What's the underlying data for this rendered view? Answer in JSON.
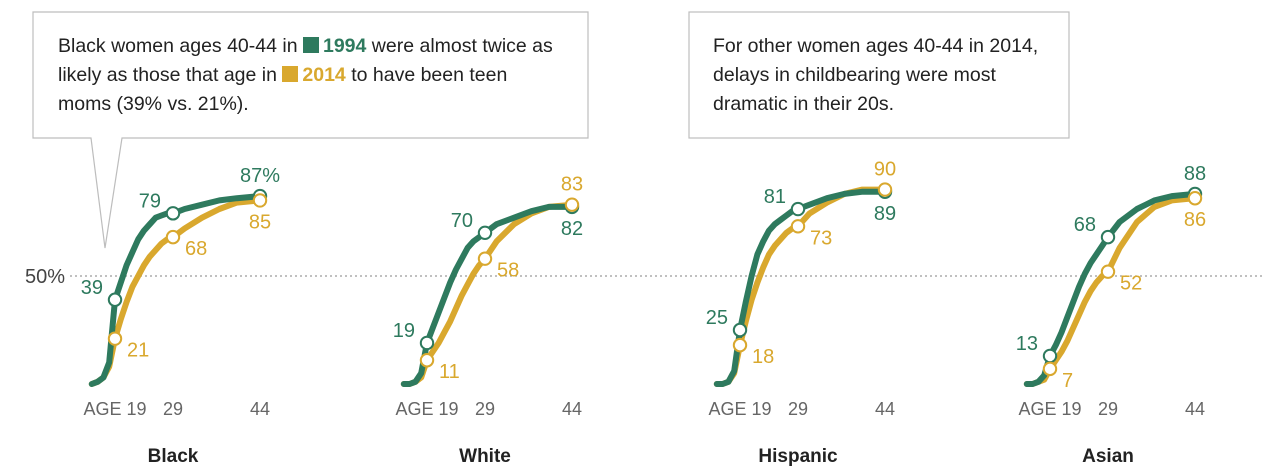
{
  "callouts": {
    "left": {
      "text_before": "Black women ages 40-44 in",
      "year_a": "1994",
      "text_middle": "were almost twice as likely as those that age in",
      "year_b": "2014",
      "text_after": "to have been teen moms (39% vs. 21%)."
    },
    "right": {
      "text": "For other women ages 40-44 in 2014, delays in childbearing were most dramatic in their 20s."
    }
  },
  "colors": {
    "y1994": "#2e7a5e",
    "y2014": "#d9a82e",
    "ref": "#9a9a9a",
    "text": "#444444"
  },
  "chart_data": {
    "type": "line",
    "x_tick_labels": [
      "AGE 19",
      "29",
      "44"
    ],
    "x_ticks": [
      19,
      29,
      44
    ],
    "y_ref_label": "50%",
    "y_ref": 50,
    "ylim": [
      0,
      100
    ],
    "legend_series": [
      "1994",
      "2014"
    ],
    "panels": [
      {
        "title": "Black",
        "series": [
          {
            "name": "1994",
            "x": [
              15,
              16,
              17,
              18,
              19,
              20,
              21,
              22,
              23,
              24,
              25,
              26,
              27,
              28,
              29,
              31,
              34,
              37,
              40,
              44
            ],
            "y": [
              0,
              1,
              3,
              10,
              39,
              47,
              55,
              61,
              67,
              71,
              74,
              77,
              78,
              79,
              79,
              81,
              83,
              85,
              86,
              87
            ],
            "labels": [
              {
                "x": 19,
                "y": 39,
                "text": "39"
              },
              {
                "x": 29,
                "y": 79,
                "text": "79"
              },
              {
                "x": 44,
                "y": 87,
                "text": "87%"
              }
            ]
          },
          {
            "name": "2014",
            "x": [
              15,
              16,
              17,
              18,
              19,
              20,
              21,
              22,
              23,
              24,
              25,
              26,
              27,
              28,
              29,
              31,
              34,
              37,
              40,
              44
            ],
            "y": [
              0,
              1,
              3,
              8,
              21,
              30,
              38,
              45,
              50,
              55,
              59,
              62,
              65,
              67,
              68,
              72,
              77,
              81,
              84,
              85
            ],
            "labels": [
              {
                "x": 19,
                "y": 21,
                "text": "21"
              },
              {
                "x": 29,
                "y": 68,
                "text": "68"
              },
              {
                "x": 44,
                "y": 85,
                "text": "85"
              }
            ]
          }
        ]
      },
      {
        "title": "White",
        "series": [
          {
            "name": "1994",
            "x": [
              15,
              16,
              17,
              18,
              19,
              20,
              21,
              22,
              23,
              24,
              25,
              26,
              27,
              28,
              29,
              31,
              34,
              37,
              40,
              44
            ],
            "y": [
              0,
              0,
              1,
              5,
              19,
              26,
              33,
              40,
              47,
              53,
              58,
              63,
              66,
              68,
              70,
              74,
              77,
              80,
              82,
              82
            ],
            "labels": [
              {
                "x": 19,
                "y": 19,
                "text": "19"
              },
              {
                "x": 29,
                "y": 70,
                "text": "70"
              },
              {
                "x": 44,
                "y": 82,
                "text": "82"
              }
            ]
          },
          {
            "name": "2014",
            "x": [
              15,
              16,
              17,
              18,
              19,
              20,
              21,
              22,
              23,
              24,
              25,
              26,
              27,
              28,
              29,
              31,
              34,
              37,
              40,
              44
            ],
            "y": [
              0,
              0,
              1,
              3,
              11,
              15,
              19,
              24,
              29,
              35,
              41,
              46,
              51,
              55,
              58,
              66,
              74,
              79,
              82,
              83
            ],
            "labels": [
              {
                "x": 19,
                "y": 11,
                "text": "11"
              },
              {
                "x": 29,
                "y": 58,
                "text": "58"
              },
              {
                "x": 44,
                "y": 83,
                "text": "83"
              }
            ]
          }
        ]
      },
      {
        "title": "Hispanic",
        "series": [
          {
            "name": "1994",
            "x": [
              15,
              16,
              17,
              18,
              19,
              20,
              21,
              22,
              23,
              24,
              25,
              26,
              27,
              28,
              29,
              31,
              34,
              37,
              40,
              44
            ],
            "y": [
              0,
              0,
              1,
              6,
              25,
              38,
              50,
              60,
              66,
              71,
              74,
              76,
              78,
              80,
              81,
              83,
              86,
              88,
              89,
              89
            ],
            "labels": [
              {
                "x": 19,
                "y": 25,
                "text": "25"
              },
              {
                "x": 29,
                "y": 81,
                "text": "81"
              },
              {
                "x": 44,
                "y": 89,
                "text": "89"
              }
            ]
          },
          {
            "name": "2014",
            "x": [
              15,
              16,
              17,
              18,
              19,
              20,
              21,
              22,
              23,
              24,
              25,
              26,
              27,
              28,
              29,
              31,
              34,
              37,
              40,
              44
            ],
            "y": [
              0,
              0,
              1,
              5,
              18,
              29,
              39,
              47,
              54,
              60,
              64,
              67,
              70,
              72,
              73,
              79,
              84,
              88,
              90,
              90
            ],
            "labels": [
              {
                "x": 19,
                "y": 18,
                "text": "18"
              },
              {
                "x": 29,
                "y": 73,
                "text": "73"
              },
              {
                "x": 44,
                "y": 90,
                "text": "90"
              }
            ]
          }
        ]
      },
      {
        "title": "Asian",
        "series": [
          {
            "name": "1994",
            "x": [
              15,
              16,
              17,
              18,
              19,
              20,
              21,
              22,
              23,
              24,
              25,
              26,
              27,
              28,
              29,
              31,
              34,
              37,
              40,
              44
            ],
            "y": [
              0,
              0,
              1,
              4,
              13,
              18,
              24,
              31,
              38,
              45,
              51,
              56,
              60,
              64,
              68,
              75,
              81,
              85,
              87,
              88
            ],
            "labels": [
              {
                "x": 19,
                "y": 13,
                "text": "13"
              },
              {
                "x": 29,
                "y": 68,
                "text": "68"
              },
              {
                "x": 44,
                "y": 88,
                "text": "88"
              }
            ]
          },
          {
            "name": "2014",
            "x": [
              15,
              16,
              17,
              18,
              19,
              20,
              21,
              22,
              23,
              24,
              25,
              26,
              27,
              28,
              29,
              31,
              34,
              37,
              40,
              44
            ],
            "y": [
              0,
              0,
              1,
              2,
              7,
              11,
              15,
              20,
              26,
              32,
              38,
              43,
              47,
              50,
              52,
              63,
              75,
              82,
              85,
              86
            ],
            "labels": [
              {
                "x": 19,
                "y": 7,
                "text": "7"
              },
              {
                "x": 29,
                "y": 52,
                "text": "52"
              },
              {
                "x": 44,
                "y": 86,
                "text": "86"
              }
            ]
          }
        ]
      }
    ]
  }
}
